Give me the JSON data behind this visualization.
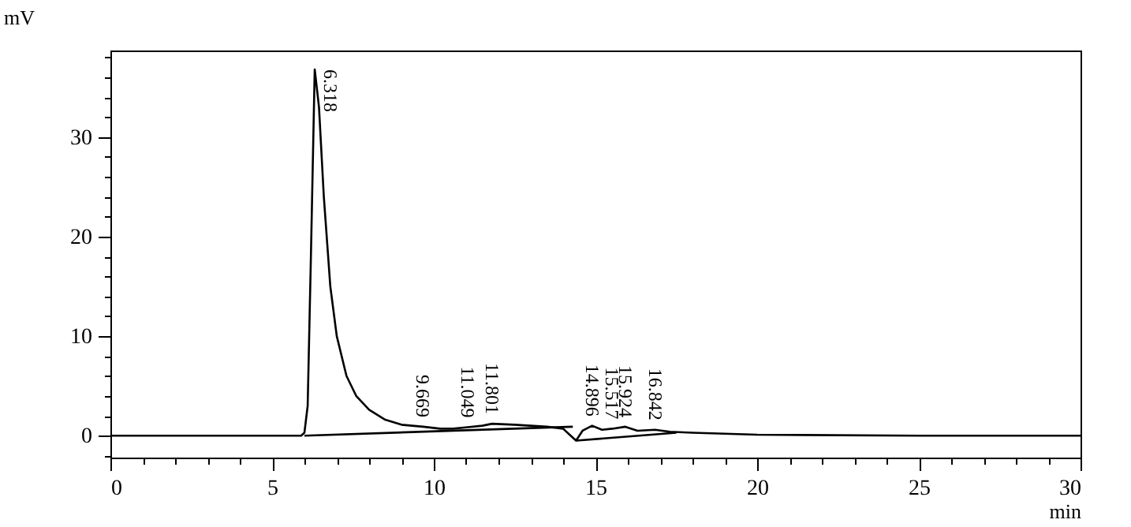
{
  "chart_data": {
    "type": "line",
    "xlabel": "min",
    "ylabel": "mV",
    "xlim": [
      0,
      30
    ],
    "ylim": [
      -2.2,
      38.7
    ],
    "xticks": [
      0,
      {
        "value": 1,
        "label": null
      },
      {
        "value": 2,
        "label": null
      },
      {
        "value": 3,
        "label": null
      },
      {
        "value": 4,
        "label": null
      },
      5,
      {
        "value": 6,
        "label": null
      },
      {
        "value": 7,
        "label": null
      },
      {
        "value": 8,
        "label": null
      },
      {
        "value": 9,
        "label": null
      },
      10,
      {
        "value": 11,
        "label": null
      },
      {
        "value": 12,
        "label": null
      },
      {
        "value": 13,
        "label": null
      },
      {
        "value": 14,
        "label": null
      },
      15,
      {
        "value": 16,
        "label": null
      },
      {
        "value": 17,
        "label": null
      },
      {
        "value": 18,
        "label": null
      },
      {
        "value": 19,
        "label": null
      },
      20,
      {
        "value": 21,
        "label": null
      },
      {
        "value": 22,
        "label": null
      },
      {
        "value": 23,
        "label": null
      },
      {
        "value": 24,
        "label": null
      },
      25,
      {
        "value": 26,
        "label": null
      },
      {
        "value": 27,
        "label": null
      },
      {
        "value": 28,
        "label": null
      },
      {
        "value": 29,
        "label": null
      },
      30
    ],
    "yticks": [
      {
        "value": -2,
        "label": null
      },
      0,
      {
        "value": 2,
        "label": null
      },
      {
        "value": 4,
        "label": null
      },
      {
        "value": 6,
        "label": null
      },
      {
        "value": 8,
        "label": null
      },
      10,
      {
        "value": 12,
        "label": null
      },
      {
        "value": 14,
        "label": null
      },
      {
        "value": 16,
        "label": null
      },
      {
        "value": 18,
        "label": null
      },
      20,
      {
        "value": 22,
        "label": null
      },
      {
        "value": 24,
        "label": null
      },
      {
        "value": 26,
        "label": null
      },
      {
        "value": 28,
        "label": null
      },
      30,
      {
        "value": 32,
        "label": null
      },
      {
        "value": 34,
        "label": null
      },
      {
        "value": 36,
        "label": null
      },
      {
        "value": 38,
        "label": null
      }
    ],
    "grid": false,
    "line_style": "solid",
    "marker": "none",
    "series": [
      {
        "color": "#000000",
        "x": [
          0,
          5,
          5.9,
          6.0,
          6.1,
          6.2,
          6.318,
          6.45,
          6.6,
          6.8,
          7.0,
          7.3,
          7.6,
          8.0,
          8.5,
          9.0,
          9.669,
          10.2,
          10.6,
          11.049,
          11.5,
          11.801,
          12.5,
          13.5,
          14.0,
          14.2,
          14.4,
          14.6,
          14.896,
          15.2,
          15.517,
          15.924,
          16.3,
          16.842,
          17.3,
          18,
          20,
          25,
          30
        ],
        "values": [
          0,
          0,
          0,
          0.3,
          3,
          18,
          36.8,
          33,
          24,
          15,
          10,
          6,
          4,
          2.6,
          1.6,
          1.1,
          0.9,
          0.7,
          0.7,
          0.85,
          1.0,
          1.2,
          1.1,
          0.9,
          0.7,
          0.1,
          -0.5,
          0.5,
          1.0,
          0.6,
          0.7,
          0.9,
          0.5,
          0.6,
          0.4,
          0.3,
          0.1,
          0,
          0
        ]
      },
      {
        "color": "#000000",
        "x": [
          6.0,
          14.3
        ],
        "values": [
          0,
          0.9
        ]
      },
      {
        "color": "#000000",
        "x": [
          14.4,
          17.5
        ],
        "values": [
          -0.5,
          0.3
        ]
      }
    ],
    "annotations": [
      {
        "text": "6.318",
        "x": 6.318,
        "y": 36.8
      },
      {
        "text": "9.669",
        "x": 9.669,
        "y": 0.9
      },
      {
        "text": "11.049",
        "x": 11.049,
        "y": 0.85
      },
      {
        "text": "11.801",
        "x": 11.801,
        "y": 1.2
      },
      {
        "text": "14.896",
        "x": 14.896,
        "y": 1.0
      },
      {
        "text": "15.517",
        "x": 15.517,
        "y": 0.7
      },
      {
        "text": "15.924",
        "x": 15.924,
        "y": 0.9
      },
      {
        "text": "16.842",
        "x": 16.842,
        "y": 0.6
      }
    ]
  }
}
